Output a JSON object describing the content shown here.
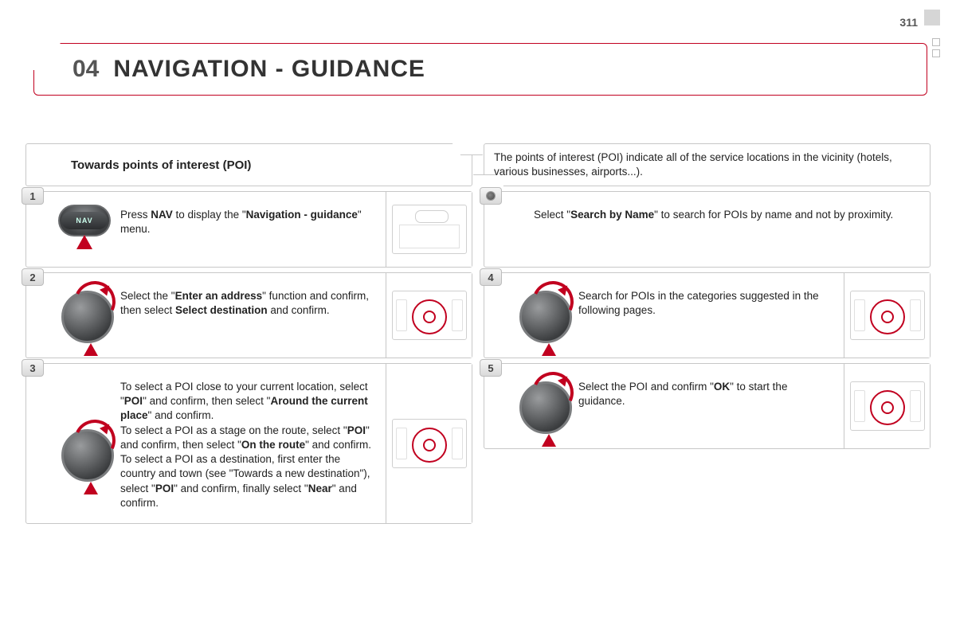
{
  "page_number": "311",
  "header": {
    "section_number": "04",
    "title": "NAVIGATION - GUIDANCE"
  },
  "left": {
    "subtitle": "Towards points of interest (POI)",
    "steps": [
      {
        "num": "1",
        "icon": "nav-button",
        "aux": "buttons",
        "html": "Press <b>NAV</b> to display the \"<b>Navigation - guidance</b>\" menu."
      },
      {
        "num": "2",
        "icon": "dial",
        "aux": "dpad",
        "html": "Select the \"<b>Enter an address</b>\" function and confirm, then select <b>Select destination</b> and confirm."
      },
      {
        "num": "3",
        "icon": "dial",
        "aux": "dpad",
        "html": "To select a POI close to your current location, select \"<b>POI</b>\" and confirm, then select \"<b>Around the current place</b>\" and confirm.<br>To select a POI as a stage on the route, select \"<b>POI</b>\" and confirm, then select \"<b>On the route</b>\" and confirm.<br>To select a POI as a destination, first enter the country and town (see \"Towards a new destination\"), select \"<b>POI</b>\" and confirm, finally select \"<b>Near</b>\" and confirm."
      }
    ]
  },
  "right": {
    "header_text": "The points of interest (POI) indicate all of the service locations in the vicinity (hotels, various businesses, airports...).",
    "tip": {
      "html": "Select \"<b>Search by Name</b>\" to search for POIs by name and not by proximity."
    },
    "steps": [
      {
        "num": "4",
        "icon": "dial",
        "aux": "dpad",
        "html": "Search for POIs in the categories suggested in the following pages."
      },
      {
        "num": "5",
        "icon": "dial",
        "aux": "dpad",
        "html": "Select the POI and confirm \"<b>OK</b>\" to start the guidance."
      }
    ]
  },
  "colors": {
    "accent": "#c1001f",
    "border": "#c7c7c7",
    "text": "#222222",
    "background": "#ffffff"
  }
}
